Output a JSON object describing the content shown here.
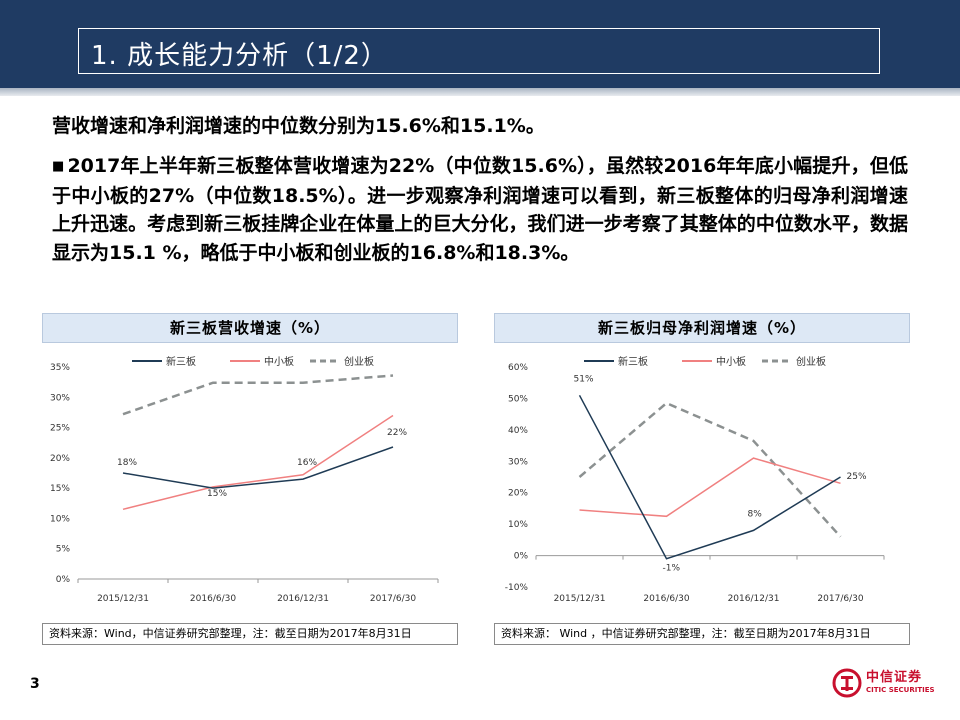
{
  "header": {
    "title": "1. 成长能力分析（1/2）"
  },
  "lead": "营收增速和净利润增速的中位数分别为15.6%和15.1%。",
  "paragraph": "2017年上半年新三板整体营收增速为22%（中位数15.6%），虽然较2016年年底小幅提升，但低于中小板的27%（中位数18.5%）。进一步观察净利润增速可以看到，新三板整体的归母净利润增速上升迅速。考虑到新三板挂牌企业在体量上的巨大分化，我们进一步考察了其整体的中位数水平，数据显示为15.1 %，略低于中小板和创业板的16.8%和18.3%。",
  "page_number": "3",
  "logo": {
    "name": "中信证券",
    "name_en": "CITIC SECURITIES",
    "color": "#c8102e"
  },
  "chart_data": [
    {
      "type": "line",
      "title": "新三板营收增速（%）",
      "categories": [
        "2015/12/31",
        "2016/6/30",
        "2016/12/31",
        "2017/6/30"
      ],
      "ylim": [
        0,
        35
      ],
      "yticks": [
        "0%",
        "5%",
        "10%",
        "15%",
        "20%",
        "25%",
        "30%",
        "35%"
      ],
      "grid": false,
      "legend_position": "top",
      "series": [
        {
          "name": "新三板",
          "values": [
            17.5,
            15.0,
            16.5,
            21.8
          ],
          "color": "#1f3b55",
          "dash": "solid",
          "labels": [
            "18%",
            "15%",
            "16%",
            "22%"
          ]
        },
        {
          "name": "中小板",
          "values": [
            11.5,
            15.2,
            17.2,
            27.0
          ],
          "color": "#f08080",
          "dash": "solid"
        },
        {
          "name": "创业板",
          "values": [
            27.2,
            32.4,
            32.4,
            33.6
          ],
          "color": "#8c9191",
          "dash": "dashed"
        }
      ],
      "source": "资料来源：Wind，中信证券研究部整理，注：截至日期为2017年8月31日"
    },
    {
      "type": "line",
      "title": "新三板归母净利润增速（%）",
      "categories": [
        "2015/12/31",
        "2016/6/30",
        "2016/12/31",
        "2017/6/30"
      ],
      "ylim": [
        -10,
        60
      ],
      "yticks": [
        "-10%",
        "0%",
        "10%",
        "20%",
        "30%",
        "40%",
        "50%",
        "60%"
      ],
      "grid": false,
      "legend_position": "top",
      "series": [
        {
          "name": "新三板",
          "values": [
            51.0,
            -1.0,
            8.0,
            25.0
          ],
          "color": "#1f3b55",
          "dash": "solid",
          "labels": [
            "51%",
            "-1%",
            "8%",
            "25%"
          ]
        },
        {
          "name": "中小板",
          "values": [
            14.5,
            12.5,
            31.0,
            23.0
          ],
          "color": "#f08080",
          "dash": "solid"
        },
        {
          "name": "创业板",
          "values": [
            25.0,
            48.5,
            36.5,
            6.0
          ],
          "color": "#8c9191",
          "dash": "dashed"
        }
      ],
      "source": "资料来源： Wind ，中信证券研究部整理，注：截至日期为2017年8月31日"
    }
  ]
}
